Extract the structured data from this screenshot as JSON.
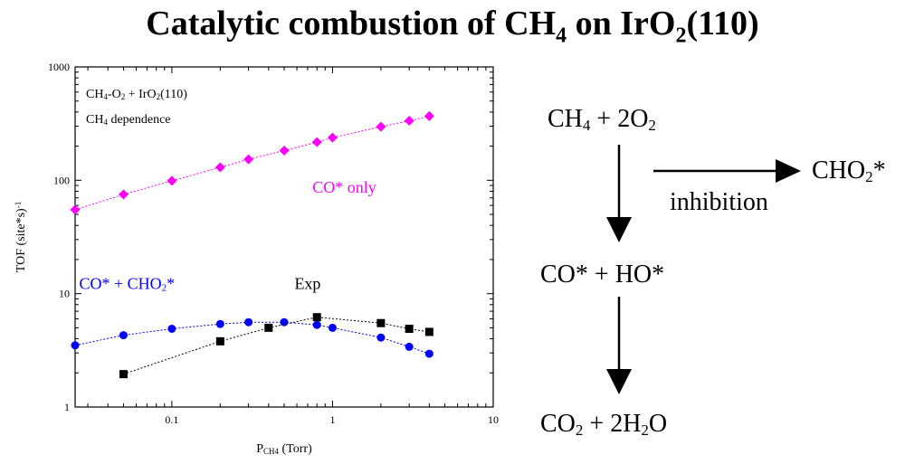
{
  "title": {
    "text": "Catalytic combustion of CH",
    "sub1": "4",
    "mid": " on IrO",
    "sub2": "2",
    "end": "(110)"
  },
  "chart_data": {
    "type": "scatter",
    "title": "",
    "xlabel": {
      "main": "P",
      "sub": "CH4",
      "rest": " (Torr)"
    },
    "ylabel": "TOF (site*s)",
    "ylabel_sup": "-1",
    "xscale": "log",
    "yscale": "log",
    "xlim": [
      0.025,
      10
    ],
    "ylim": [
      1,
      1000
    ],
    "xticks": [
      {
        "v": 0.1,
        "label": "0.1"
      },
      {
        "v": 1,
        "label": "1"
      },
      {
        "v": 10,
        "label": "10"
      }
    ],
    "yticks": [
      {
        "v": 1,
        "label": "1"
      },
      {
        "v": 10,
        "label": "10"
      },
      {
        "v": 100,
        "label": "100"
      },
      {
        "v": 1000,
        "label": "1000"
      }
    ],
    "grid": false,
    "inset_text": [
      {
        "parts": [
          [
            "CH",
            ""
          ],
          [
            "4",
            "sub"
          ],
          [
            "-O",
            ""
          ],
          [
            "2",
            "sub"
          ],
          [
            " + IrO",
            ""
          ],
          [
            "2",
            "sub"
          ],
          [
            "(110)",
            ""
          ]
        ]
      },
      {
        "parts": [
          [
            "CH",
            ""
          ],
          [
            "4",
            "sub"
          ],
          [
            " dependence",
            ""
          ]
        ]
      }
    ],
    "series": [
      {
        "name": "CO* only",
        "color": "#ff00ff",
        "marker": "diamond",
        "x": [
          0.025,
          0.05,
          0.1,
          0.2,
          0.3,
          0.5,
          0.8,
          1.0,
          2.0,
          3.0,
          4.0
        ],
        "y": [
          55,
          75,
          99,
          130,
          153,
          183,
          217,
          238,
          297,
          335,
          368
        ],
        "label_parts": [
          [
            "CO* only",
            ""
          ]
        ],
        "label_at": [
          0.75,
          78
        ]
      },
      {
        "name": "CO* + CHO2*",
        "color": "#0000ff",
        "marker": "circle",
        "x": [
          0.025,
          0.05,
          0.1,
          0.2,
          0.3,
          0.5,
          0.8,
          1.0,
          2.0,
          3.0,
          4.0
        ],
        "y": [
          3.5,
          4.3,
          4.9,
          5.4,
          5.6,
          5.6,
          5.3,
          5.0,
          4.1,
          3.4,
          2.95
        ],
        "label_parts": [
          [
            "CO* + CHO",
            ""
          ],
          [
            "2",
            "sub"
          ],
          [
            "*",
            ""
          ]
        ],
        "label_at": [
          0.0265,
          11
        ]
      },
      {
        "name": "Exp",
        "color": "#000000",
        "marker": "square",
        "x": [
          0.05,
          0.2,
          0.4,
          0.8,
          2.0,
          3.0,
          4.0
        ],
        "y": [
          1.95,
          3.8,
          5.0,
          6.2,
          5.5,
          4.9,
          4.6
        ],
        "label_parts": [
          [
            "Exp",
            ""
          ]
        ],
        "label_at": [
          0.58,
          11
        ]
      }
    ]
  },
  "scheme": {
    "reactants": {
      "parts": [
        [
          "CH",
          ""
        ],
        [
          "4",
          "sub"
        ],
        [
          " + 2O",
          ""
        ],
        [
          "2",
          "sub"
        ]
      ]
    },
    "intermediate": {
      "parts": [
        [
          "CO* + HO*",
          ""
        ]
      ]
    },
    "products": {
      "parts": [
        [
          "CO",
          ""
        ],
        [
          "2",
          "sub"
        ],
        [
          " + 2H",
          ""
        ],
        [
          "2",
          "sub"
        ],
        [
          "O",
          ""
        ]
      ]
    },
    "side_product": {
      "parts": [
        [
          "CHO",
          ""
        ],
        [
          "2",
          "sub"
        ],
        [
          "*",
          ""
        ]
      ]
    },
    "arrow_label": "inhibition"
  }
}
